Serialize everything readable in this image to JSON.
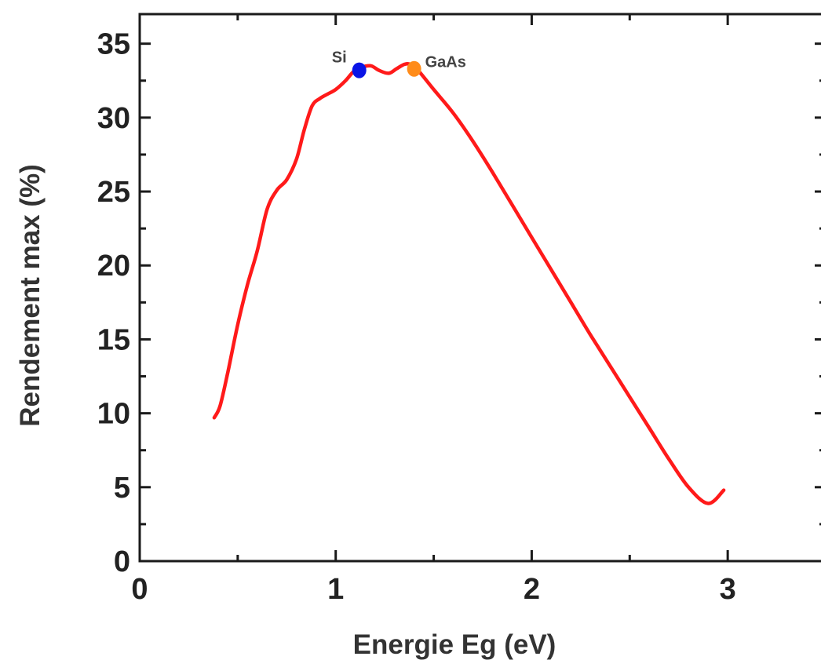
{
  "chart_data": {
    "type": "line",
    "xlabel": "Energie Eg (eV)",
    "ylabel": "Rendement max (%)",
    "xlim": [
      0,
      3.5
    ],
    "ylim": [
      0,
      37
    ],
    "xticks": [
      0,
      1,
      2,
      3
    ],
    "xtick_labels": [
      "0",
      "1",
      "2",
      "3"
    ],
    "yticks": [
      0,
      5,
      10,
      15,
      20,
      25,
      30,
      35
    ],
    "ytick_labels": [
      "0",
      "5",
      "10",
      "15",
      "20",
      "25",
      "30",
      "35"
    ],
    "grid": false,
    "series": [
      {
        "color": "#ff1a1a",
        "x": [
          0.38,
          0.41,
          0.45,
          0.5,
          0.55,
          0.6,
          0.65,
          0.7,
          0.75,
          0.8,
          0.84,
          0.88,
          0.92,
          0.96,
          1.0,
          1.05,
          1.09,
          1.13,
          1.18,
          1.22,
          1.27,
          1.31,
          1.35,
          1.38,
          1.42,
          1.5,
          1.6,
          1.7,
          1.8,
          1.9,
          2.0,
          2.1,
          2.2,
          2.3,
          2.4,
          2.5,
          2.6,
          2.7,
          2.8,
          2.9,
          2.98
        ],
        "y": [
          9.7,
          10.5,
          12.8,
          16.0,
          18.7,
          21.0,
          23.8,
          25.1,
          25.8,
          27.2,
          29.2,
          30.8,
          31.3,
          31.6,
          31.9,
          32.5,
          33.1,
          33.4,
          33.5,
          33.2,
          33.0,
          33.3,
          33.6,
          33.6,
          33.2,
          31.9,
          30.3,
          28.4,
          26.3,
          24.1,
          21.9,
          19.7,
          17.5,
          15.3,
          13.2,
          11.1,
          9.0,
          6.9,
          5.0,
          3.9,
          4.8
        ]
      }
    ],
    "markers": [
      {
        "label": "Si",
        "x": 1.12,
        "y": 33.2,
        "color": "#0a14e6"
      },
      {
        "label": "GaAs",
        "x": 1.4,
        "y": 33.3,
        "color": "#ff8c1a"
      }
    ]
  }
}
